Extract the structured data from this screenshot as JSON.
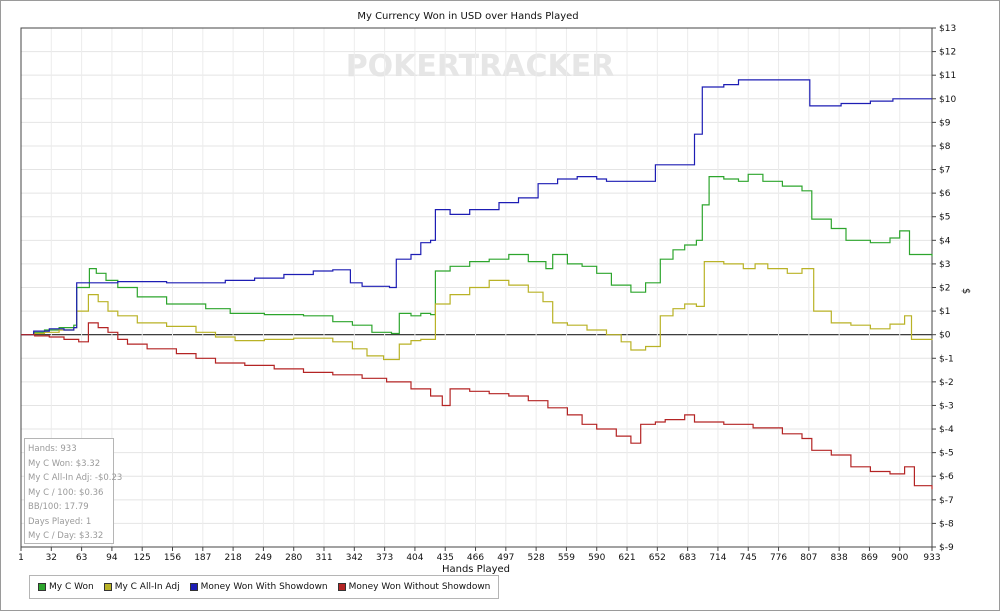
{
  "chart_data": {
    "type": "line",
    "title": "My Currency Won in USD over Hands Played",
    "xlabel": "Hands Played",
    "ylabel": "$",
    "watermark": "POKERTRACKER",
    "xlim": [
      1,
      933
    ],
    "ylim": [
      -9,
      13
    ],
    "x_ticks": [
      1,
      32,
      63,
      94,
      125,
      156,
      187,
      218,
      249,
      280,
      311,
      342,
      373,
      404,
      435,
      466,
      497,
      528,
      559,
      590,
      621,
      652,
      683,
      714,
      745,
      776,
      807,
      838,
      869,
      900,
      933
    ],
    "y_tick_values": [
      13,
      12,
      11,
      10,
      9,
      8,
      7,
      6,
      5,
      4,
      3,
      2,
      1,
      0,
      -1,
      -2,
      -3,
      -4,
      -5,
      -6,
      -7,
      -8,
      -9
    ],
    "y_tick_labels": [
      "$13",
      "$12",
      "$11",
      "$10",
      "$9",
      "$8",
      "$7",
      "$6",
      "$5",
      "$4",
      "$3",
      "$2",
      "$1",
      "$0",
      "$-1",
      "$-2",
      "$-3",
      "$-4",
      "$-5",
      "$-6",
      "$-7",
      "$-8",
      "$-9"
    ],
    "grid": true,
    "legend_position": "bottom-left",
    "series": [
      {
        "name": "My C Won",
        "color": "#2da52d",
        "points": [
          [
            1,
            0
          ],
          [
            14,
            0.1
          ],
          [
            25,
            0.2
          ],
          [
            40,
            0.3
          ],
          [
            55,
            0.4
          ],
          [
            58,
            2.0
          ],
          [
            71,
            2.8
          ],
          [
            78,
            2.6
          ],
          [
            88,
            2.3
          ],
          [
            100,
            2.0
          ],
          [
            120,
            1.6
          ],
          [
            150,
            1.3
          ],
          [
            190,
            1.1
          ],
          [
            215,
            0.9
          ],
          [
            250,
            0.85
          ],
          [
            290,
            0.8
          ],
          [
            320,
            0.55
          ],
          [
            340,
            0.4
          ],
          [
            360,
            0.1
          ],
          [
            380,
            0.05
          ],
          [
            388,
            0.9
          ],
          [
            400,
            0.8
          ],
          [
            410,
            0.9
          ],
          [
            420,
            0.85
          ],
          [
            425,
            2.7
          ],
          [
            440,
            2.9
          ],
          [
            460,
            3.1
          ],
          [
            480,
            3.2
          ],
          [
            500,
            3.4
          ],
          [
            520,
            3.1
          ],
          [
            538,
            2.8
          ],
          [
            545,
            3.4
          ],
          [
            560,
            3.0
          ],
          [
            575,
            2.9
          ],
          [
            590,
            2.6
          ],
          [
            605,
            2.1
          ],
          [
            625,
            1.8
          ],
          [
            640,
            2.2
          ],
          [
            655,
            3.2
          ],
          [
            668,
            3.6
          ],
          [
            680,
            3.8
          ],
          [
            692,
            4.0
          ],
          [
            698,
            5.5
          ],
          [
            705,
            6.7
          ],
          [
            720,
            6.6
          ],
          [
            735,
            6.5
          ],
          [
            745,
            6.8
          ],
          [
            760,
            6.5
          ],
          [
            780,
            6.3
          ],
          [
            800,
            6.1
          ],
          [
            810,
            4.9
          ],
          [
            830,
            4.5
          ],
          [
            845,
            4.0
          ],
          [
            870,
            3.9
          ],
          [
            890,
            4.1
          ],
          [
            900,
            4.4
          ],
          [
            910,
            3.4
          ],
          [
            933,
            3.32
          ]
        ]
      },
      {
        "name": "My C All-In Adj",
        "color": "#b9b226",
        "points": [
          [
            1,
            0
          ],
          [
            14,
            0.05
          ],
          [
            25,
            0.1
          ],
          [
            40,
            0.2
          ],
          [
            55,
            0.3
          ],
          [
            58,
            1.0
          ],
          [
            70,
            1.7
          ],
          [
            80,
            1.4
          ],
          [
            90,
            1.0
          ],
          [
            100,
            0.8
          ],
          [
            120,
            0.5
          ],
          [
            150,
            0.35
          ],
          [
            180,
            0.1
          ],
          [
            200,
            -0.1
          ],
          [
            220,
            -0.25
          ],
          [
            250,
            -0.2
          ],
          [
            280,
            -0.15
          ],
          [
            320,
            -0.3
          ],
          [
            340,
            -0.6
          ],
          [
            355,
            -0.9
          ],
          [
            372,
            -1.05
          ],
          [
            388,
            -0.4
          ],
          [
            400,
            -0.25
          ],
          [
            410,
            -0.2
          ],
          [
            425,
            1.3
          ],
          [
            440,
            1.7
          ],
          [
            460,
            2.0
          ],
          [
            480,
            2.3
          ],
          [
            500,
            2.1
          ],
          [
            520,
            1.8
          ],
          [
            535,
            1.4
          ],
          [
            545,
            0.5
          ],
          [
            560,
            0.4
          ],
          [
            580,
            0.2
          ],
          [
            600,
            0.0
          ],
          [
            615,
            -0.3
          ],
          [
            625,
            -0.65
          ],
          [
            640,
            -0.5
          ],
          [
            655,
            0.8
          ],
          [
            668,
            1.1
          ],
          [
            680,
            1.3
          ],
          [
            692,
            1.2
          ],
          [
            700,
            3.1
          ],
          [
            720,
            3.0
          ],
          [
            740,
            2.8
          ],
          [
            752,
            3.0
          ],
          [
            765,
            2.8
          ],
          [
            785,
            2.6
          ],
          [
            800,
            2.8
          ],
          [
            812,
            1.0
          ],
          [
            830,
            0.5
          ],
          [
            850,
            0.4
          ],
          [
            870,
            0.25
          ],
          [
            890,
            0.45
          ],
          [
            905,
            0.8
          ],
          [
            912,
            -0.2
          ],
          [
            933,
            -0.23
          ]
        ]
      },
      {
        "name": "Money Won With Showdown",
        "color": "#1d1db4",
        "points": [
          [
            1,
            0
          ],
          [
            14,
            0.15
          ],
          [
            30,
            0.25
          ],
          [
            45,
            0.2
          ],
          [
            55,
            0.3
          ],
          [
            58,
            2.2
          ],
          [
            100,
            2.25
          ],
          [
            150,
            2.2
          ],
          [
            190,
            2.2
          ],
          [
            210,
            2.3
          ],
          [
            240,
            2.4
          ],
          [
            270,
            2.55
          ],
          [
            300,
            2.7
          ],
          [
            320,
            2.75
          ],
          [
            338,
            2.2
          ],
          [
            350,
            2.05
          ],
          [
            378,
            2.0
          ],
          [
            385,
            3.2
          ],
          [
            400,
            3.4
          ],
          [
            410,
            3.9
          ],
          [
            420,
            4.0
          ],
          [
            425,
            5.3
          ],
          [
            440,
            5.1
          ],
          [
            460,
            5.3
          ],
          [
            490,
            5.6
          ],
          [
            510,
            5.8
          ],
          [
            530,
            6.4
          ],
          [
            550,
            6.6
          ],
          [
            570,
            6.7
          ],
          [
            590,
            6.6
          ],
          [
            600,
            6.5
          ],
          [
            630,
            6.5
          ],
          [
            650,
            7.2
          ],
          [
            680,
            7.2
          ],
          [
            690,
            8.5
          ],
          [
            698,
            10.5
          ],
          [
            720,
            10.6
          ],
          [
            735,
            10.8
          ],
          [
            760,
            10.8
          ],
          [
            800,
            10.8
          ],
          [
            808,
            9.7
          ],
          [
            840,
            9.8
          ],
          [
            870,
            9.9
          ],
          [
            893,
            10.0
          ],
          [
            933,
            10.0
          ]
        ]
      },
      {
        "name": "Money Won Without Showdown",
        "color": "#b42424",
        "points": [
          [
            1,
            0
          ],
          [
            15,
            -0.05
          ],
          [
            30,
            -0.1
          ],
          [
            45,
            -0.2
          ],
          [
            60,
            -0.3
          ],
          [
            70,
            0.5
          ],
          [
            80,
            0.3
          ],
          [
            90,
            0.1
          ],
          [
            100,
            -0.2
          ],
          [
            110,
            -0.4
          ],
          [
            130,
            -0.6
          ],
          [
            160,
            -0.8
          ],
          [
            180,
            -1.0
          ],
          [
            200,
            -1.2
          ],
          [
            230,
            -1.3
          ],
          [
            260,
            -1.45
          ],
          [
            290,
            -1.6
          ],
          [
            320,
            -1.7
          ],
          [
            350,
            -1.85
          ],
          [
            375,
            -2.0
          ],
          [
            400,
            -2.3
          ],
          [
            420,
            -2.6
          ],
          [
            432,
            -3.0
          ],
          [
            440,
            -2.3
          ],
          [
            460,
            -2.4
          ],
          [
            480,
            -2.5
          ],
          [
            500,
            -2.6
          ],
          [
            520,
            -2.8
          ],
          [
            540,
            -3.1
          ],
          [
            560,
            -3.4
          ],
          [
            575,
            -3.8
          ],
          [
            590,
            -4.0
          ],
          [
            610,
            -4.3
          ],
          [
            625,
            -4.6
          ],
          [
            635,
            -3.8
          ],
          [
            650,
            -3.7
          ],
          [
            660,
            -3.6
          ],
          [
            680,
            -3.4
          ],
          [
            690,
            -3.7
          ],
          [
            720,
            -3.8
          ],
          [
            750,
            -3.95
          ],
          [
            780,
            -4.2
          ],
          [
            800,
            -4.4
          ],
          [
            810,
            -4.9
          ],
          [
            830,
            -5.1
          ],
          [
            850,
            -5.6
          ],
          [
            870,
            -5.8
          ],
          [
            890,
            -5.9
          ],
          [
            905,
            -5.6
          ],
          [
            915,
            -6.4
          ],
          [
            933,
            -6.55
          ]
        ]
      }
    ]
  },
  "legend": {
    "items": [
      {
        "label": "My C Won",
        "color": "#2da52d"
      },
      {
        "label": "My C All-In Adj",
        "color": "#b9b226"
      },
      {
        "label": "Money Won With Showdown",
        "color": "#1d1db4"
      },
      {
        "label": "Money Won Without Showdown",
        "color": "#b42424"
      }
    ]
  },
  "stats": {
    "lines": [
      "Hands: 933",
      "My C Won: $3.32",
      "My C All-In Adj: -$0.23",
      "My C / 100: $0.36",
      "BB/100: 17.79",
      "Days Played: 1",
      "My C / Day: $3.32"
    ]
  }
}
